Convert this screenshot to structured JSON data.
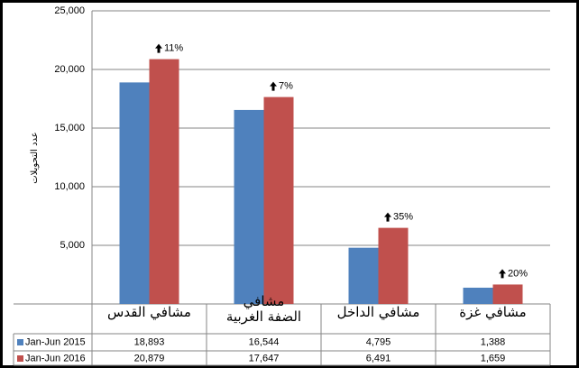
{
  "chart_data": {
    "type": "bar",
    "y_axis_label": "عدد التحويلات",
    "categories": [
      "مشافي القدس",
      "مشافي\nالضفة الغربية",
      "مشافي الداخل",
      "مشافي غزة"
    ],
    "series": [
      {
        "name": "Jan-Jun 2015",
        "color": "#4f81bd",
        "values": [
          18893,
          16544,
          4795,
          1388
        ],
        "value_labels": [
          "18,893",
          "16,544",
          "4,795",
          "1,388"
        ]
      },
      {
        "name": "Jan-Jun 2016",
        "color": "#c0504d",
        "values": [
          20879,
          17647,
          6491,
          1659
        ],
        "value_labels": [
          "20,879",
          "17,647",
          "6,491",
          "1,659"
        ]
      }
    ],
    "annotations": [
      "11%",
      "7%",
      "35%",
      "20%"
    ],
    "ylim": [
      0,
      25000
    ],
    "yticks": [
      {
        "value": 5000,
        "label": "5,000"
      },
      {
        "value": 10000,
        "label": "10,000"
      },
      {
        "value": 15000,
        "label": "15,000"
      },
      {
        "value": 20000,
        "label": "20,000"
      },
      {
        "value": 25000,
        "label": "25,000"
      }
    ],
    "grid": true
  }
}
